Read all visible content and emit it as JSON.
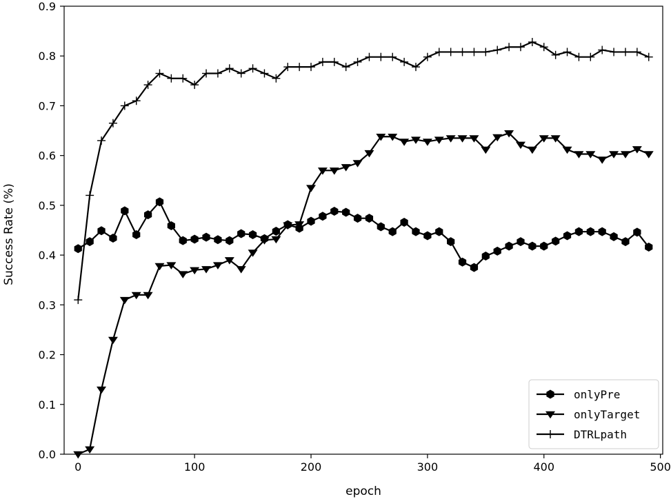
{
  "chart_data": {
    "type": "line",
    "title": "",
    "xlabel": "epoch",
    "ylabel": "Success Rate (%)",
    "xlim": [
      -12,
      502
    ],
    "ylim": [
      0,
      0.9
    ],
    "xticks": [
      0,
      100,
      200,
      300,
      400,
      500
    ],
    "yticks": [
      0.0,
      0.1,
      0.2,
      0.3,
      0.4,
      0.5,
      0.6,
      0.7,
      0.8,
      0.9
    ],
    "xtick_labels": [
      "0",
      "100",
      "200",
      "300",
      "400",
      "500"
    ],
    "ytick_labels": [
      "0.0",
      "0.1",
      "0.2",
      "0.3",
      "0.4",
      "0.5",
      "0.6",
      "0.7",
      "0.8",
      "0.9"
    ],
    "grid": false,
    "legend_position": "bottom-right",
    "x": [
      0,
      10,
      20,
      30,
      40,
      50,
      60,
      70,
      80,
      90,
      100,
      110,
      120,
      130,
      140,
      150,
      160,
      170,
      180,
      190,
      200,
      210,
      220,
      230,
      240,
      250,
      260,
      270,
      280,
      290,
      300,
      310,
      320,
      330,
      340,
      350,
      360,
      370,
      380,
      390,
      400,
      410,
      420,
      430,
      440,
      450,
      460,
      470,
      480,
      490
    ],
    "series": [
      {
        "name": "onlyPre",
        "marker": "hexagon",
        "values": [
          0.413,
          0.427,
          0.449,
          0.434,
          0.489,
          0.441,
          0.481,
          0.507,
          0.459,
          0.429,
          0.432,
          0.436,
          0.431,
          0.429,
          0.443,
          0.441,
          0.433,
          0.448,
          0.461,
          0.454,
          0.468,
          0.478,
          0.488,
          0.486,
          0.474,
          0.474,
          0.457,
          0.447,
          0.466,
          0.447,
          0.439,
          0.447,
          0.427,
          0.386,
          0.375,
          0.398,
          0.408,
          0.418,
          0.427,
          0.418,
          0.418,
          0.428,
          0.439,
          0.447,
          0.447,
          0.447,
          0.437,
          0.427,
          0.446,
          0.416
        ]
      },
      {
        "name": "onlyTarget",
        "marker": "triangle-down",
        "values": [
          0.0,
          0.01,
          0.13,
          0.23,
          0.31,
          0.32,
          0.32,
          0.378,
          0.38,
          0.362,
          0.37,
          0.372,
          0.38,
          0.39,
          0.372,
          0.405,
          0.43,
          0.432,
          0.46,
          0.462,
          0.535,
          0.57,
          0.57,
          0.577,
          0.585,
          0.605,
          0.638,
          0.638,
          0.628,
          0.632,
          0.628,
          0.632,
          0.635,
          0.635,
          0.635,
          0.612,
          0.637,
          0.645,
          0.622,
          0.612,
          0.635,
          0.635,
          0.612,
          0.603,
          0.603,
          0.592,
          0.603,
          0.603,
          0.613,
          0.603
        ]
      },
      {
        "name": "DTRLpath",
        "marker": "plus",
        "values": [
          0.31,
          0.52,
          0.63,
          0.665,
          0.7,
          0.71,
          0.742,
          0.765,
          0.755,
          0.755,
          0.742,
          0.765,
          0.765,
          0.775,
          0.765,
          0.775,
          0.765,
          0.755,
          0.778,
          0.778,
          0.778,
          0.788,
          0.788,
          0.778,
          0.788,
          0.798,
          0.798,
          0.798,
          0.788,
          0.778,
          0.798,
          0.808,
          0.808,
          0.808,
          0.808,
          0.808,
          0.812,
          0.818,
          0.818,
          0.828,
          0.818,
          0.802,
          0.808,
          0.798,
          0.798,
          0.812,
          0.808,
          0.808,
          0.808,
          0.798
        ]
      }
    ]
  }
}
